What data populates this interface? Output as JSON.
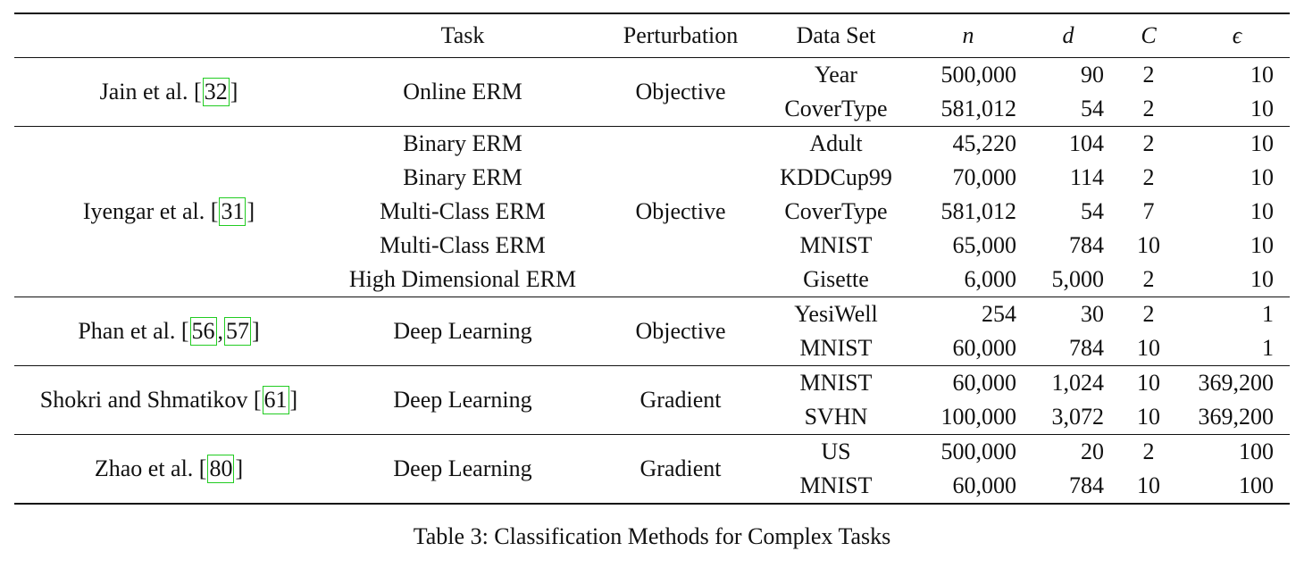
{
  "headers": {
    "task": "Task",
    "perturbation": "Perturbation",
    "dataset": "Data Set",
    "n": "n",
    "d": "d",
    "C": "C",
    "eps": "ϵ"
  },
  "groups": [
    {
      "author": "Jain et al. [",
      "cites": [
        "32"
      ],
      "author_end": "]",
      "task": "Online ERM",
      "perturbation": "Objective",
      "rows": [
        {
          "dataset": "Year",
          "n": "500,000",
          "d": "90",
          "C": "2",
          "eps": "10"
        },
        {
          "dataset": "CoverType",
          "n": "581,012",
          "d": "54",
          "C": "2",
          "eps": "10"
        }
      ]
    },
    {
      "author": "Iyengar et al. [",
      "cites": [
        "31"
      ],
      "author_end": "]",
      "perturbation": "Objective",
      "rows": [
        {
          "task": "Binary ERM",
          "dataset": "Adult",
          "n": "45,220",
          "d": "104",
          "C": "2",
          "eps": "10"
        },
        {
          "task": "Binary ERM",
          "dataset": "KDDCup99",
          "n": "70,000",
          "d": "114",
          "C": "2",
          "eps": "10"
        },
        {
          "task": "Multi-Class ERM",
          "dataset": "CoverType",
          "n": "581,012",
          "d": "54",
          "C": "7",
          "eps": "10"
        },
        {
          "task": "Multi-Class ERM",
          "dataset": "MNIST",
          "n": "65,000",
          "d": "784",
          "C": "10",
          "eps": "10"
        },
        {
          "task": "High Dimensional ERM",
          "dataset": "Gisette",
          "n": "6,000",
          "d": "5,000",
          "C": "2",
          "eps": "10"
        }
      ]
    },
    {
      "author": "Phan et al. [",
      "cites": [
        "56",
        "57"
      ],
      "cite_sep": ",",
      "author_end": "]",
      "task": "Deep Learning",
      "perturbation": "Objective",
      "rows": [
        {
          "dataset": "YesiWell",
          "n": "254",
          "d": "30",
          "C": "2",
          "eps": "1"
        },
        {
          "dataset": "MNIST",
          "n": "60,000",
          "d": "784",
          "C": "10",
          "eps": "1"
        }
      ]
    },
    {
      "author": "Shokri and Shmatikov [",
      "cites": [
        "61"
      ],
      "author_end": "]",
      "task": "Deep Learning",
      "perturbation": "Gradient",
      "rows": [
        {
          "dataset": "MNIST",
          "n": "60,000",
          "d": "1,024",
          "C": "10",
          "eps": "369,200"
        },
        {
          "dataset": "SVHN",
          "n": "100,000",
          "d": "3,072",
          "C": "10",
          "eps": "369,200"
        }
      ]
    },
    {
      "author": "Zhao et al. [",
      "cites": [
        "80"
      ],
      "author_end": "]",
      "task": "Deep Learning",
      "perturbation": "Gradient",
      "rows": [
        {
          "dataset": "US",
          "n": "500,000",
          "d": "20",
          "C": "2",
          "eps": "100"
        },
        {
          "dataset": "MNIST",
          "n": "60,000",
          "d": "784",
          "C": "10",
          "eps": "100"
        }
      ]
    }
  ],
  "caption": "Table 3: Classification Methods for Complex Tasks"
}
